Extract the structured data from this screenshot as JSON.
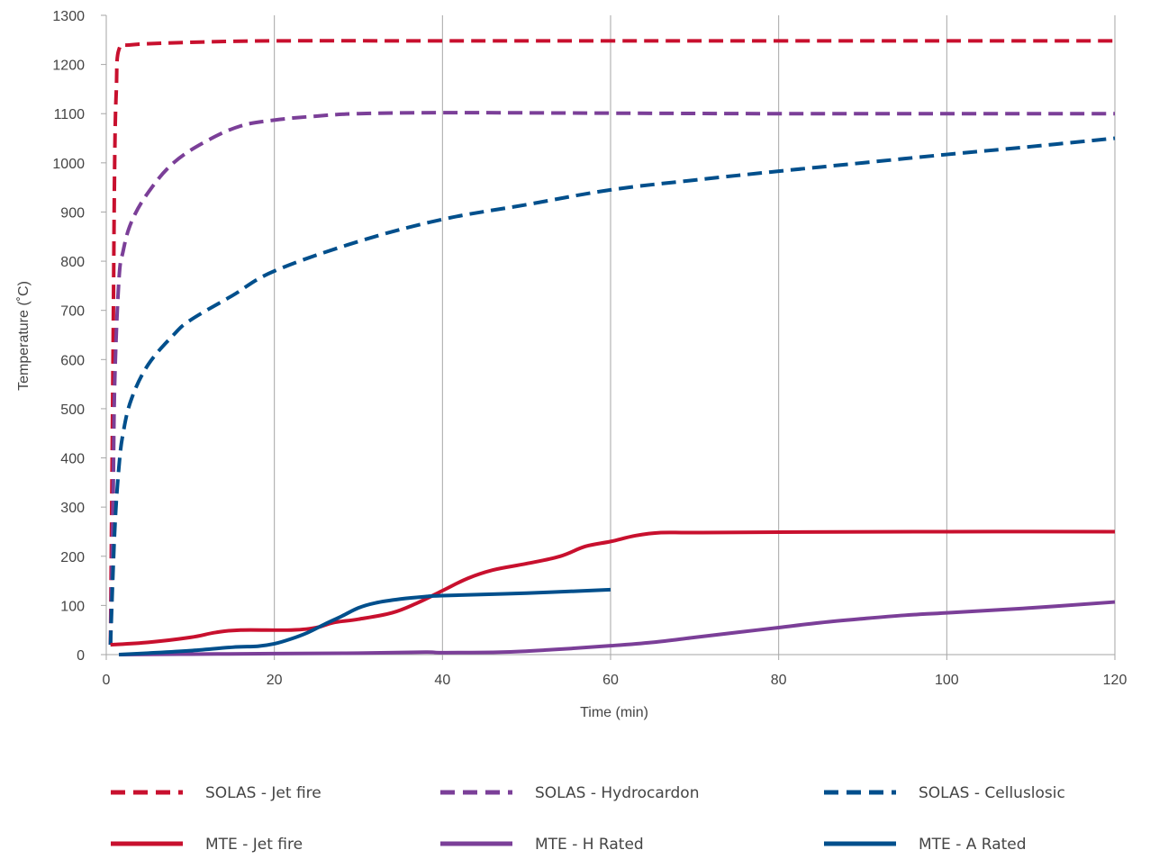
{
  "chart_data": {
    "type": "line",
    "xlabel": "Time (min)",
    "ylabel": "Temperature (˚C)",
    "xlim": [
      0,
      120
    ],
    "ylim": [
      0,
      1300
    ],
    "x_ticks": [
      0,
      20,
      40,
      60,
      80,
      100,
      120
    ],
    "y_ticks": [
      0,
      100,
      200,
      300,
      400,
      500,
      600,
      700,
      800,
      900,
      1000,
      1100,
      1200,
      1300
    ],
    "grid": "vertical",
    "legend_position": "bottom",
    "series": [
      {
        "name": "SOLAS - Jet fire",
        "color": "#c8102e",
        "style": "dashed",
        "points": [
          [
            0.5,
            20
          ],
          [
            0.8,
            600
          ],
          [
            1.0,
            1000
          ],
          [
            1.2,
            1150
          ],
          [
            1.5,
            1230
          ],
          [
            3,
            1240
          ],
          [
            10,
            1245
          ],
          [
            20,
            1248
          ],
          [
            40,
            1248
          ],
          [
            60,
            1248
          ],
          [
            80,
            1248
          ],
          [
            100,
            1248
          ],
          [
            120,
            1248
          ]
        ]
      },
      {
        "name": "SOLAS - Hydrocardon",
        "color": "#7b3f98",
        "style": "dashed",
        "points": [
          [
            0.5,
            20
          ],
          [
            0.8,
            300
          ],
          [
            1.0,
            550
          ],
          [
            1.5,
            760
          ],
          [
            2,
            820
          ],
          [
            3,
            880
          ],
          [
            5,
            940
          ],
          [
            8,
            1000
          ],
          [
            12,
            1045
          ],
          [
            16,
            1075
          ],
          [
            20,
            1087
          ],
          [
            25,
            1095
          ],
          [
            30,
            1100
          ],
          [
            40,
            1102
          ],
          [
            60,
            1101
          ],
          [
            80,
            1100
          ],
          [
            100,
            1100
          ],
          [
            120,
            1100
          ]
        ]
      },
      {
        "name": "SOLAS - Celluslosic",
        "color": "#004f8c",
        "style": "dashed",
        "points": [
          [
            0.5,
            20
          ],
          [
            1,
            250
          ],
          [
            1.5,
            380
          ],
          [
            2,
            450
          ],
          [
            3,
            520
          ],
          [
            5,
            590
          ],
          [
            8,
            650
          ],
          [
            10,
            680
          ],
          [
            15,
            730
          ],
          [
            20,
            780
          ],
          [
            30,
            840
          ],
          [
            40,
            885
          ],
          [
            50,
            915
          ],
          [
            60,
            945
          ],
          [
            70,
            965
          ],
          [
            80,
            983
          ],
          [
            90,
            1000
          ],
          [
            100,
            1017
          ],
          [
            110,
            1033
          ],
          [
            120,
            1050
          ]
        ]
      },
      {
        "name": "MTE - Jet fire",
        "color": "#c8102e",
        "style": "solid",
        "points": [
          [
            0.5,
            20
          ],
          [
            5,
            25
          ],
          [
            10,
            35
          ],
          [
            13,
            45
          ],
          [
            16,
            50
          ],
          [
            22,
            50
          ],
          [
            25,
            55
          ],
          [
            27,
            65
          ],
          [
            30,
            72
          ],
          [
            34,
            85
          ],
          [
            37,
            105
          ],
          [
            40,
            130
          ],
          [
            43,
            155
          ],
          [
            46,
            172
          ],
          [
            50,
            185
          ],
          [
            54,
            200
          ],
          [
            57,
            220
          ],
          [
            60,
            230
          ],
          [
            63,
            242
          ],
          [
            66,
            248
          ],
          [
            70,
            248
          ],
          [
            80,
            249
          ],
          [
            100,
            250
          ],
          [
            120,
            250
          ]
        ]
      },
      {
        "name": "MTE - H Rated",
        "color": "#7b3f98",
        "style": "solid",
        "points": [
          [
            1.5,
            0
          ],
          [
            10,
            1
          ],
          [
            20,
            2
          ],
          [
            30,
            3
          ],
          [
            38,
            5
          ],
          [
            40,
            4
          ],
          [
            47,
            5
          ],
          [
            53,
            10
          ],
          [
            60,
            18
          ],
          [
            65,
            25
          ],
          [
            70,
            35
          ],
          [
            75,
            45
          ],
          [
            80,
            55
          ],
          [
            85,
            65
          ],
          [
            90,
            73
          ],
          [
            95,
            80
          ],
          [
            100,
            85
          ],
          [
            110,
            95
          ],
          [
            120,
            107
          ]
        ]
      },
      {
        "name": "MTE - A Rated",
        "color": "#004f8c",
        "style": "solid",
        "points": [
          [
            1.5,
            0
          ],
          [
            5,
            3
          ],
          [
            10,
            8
          ],
          [
            15,
            15
          ],
          [
            18,
            17
          ],
          [
            20,
            22
          ],
          [
            22,
            32
          ],
          [
            24,
            45
          ],
          [
            26,
            62
          ],
          [
            28,
            78
          ],
          [
            30,
            95
          ],
          [
            32,
            105
          ],
          [
            35,
            113
          ],
          [
            38,
            118
          ],
          [
            40,
            120
          ],
          [
            50,
            125
          ],
          [
            60,
            132
          ]
        ]
      }
    ]
  }
}
